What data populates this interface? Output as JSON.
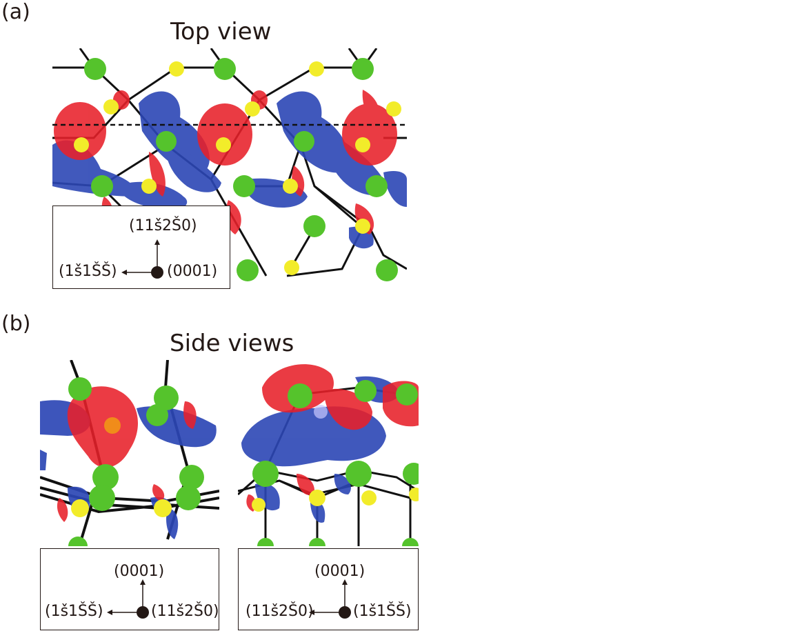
{
  "panel_a": {
    "label": "(a)",
    "title": "Top view",
    "legend": {
      "up": "(11š2Š0)",
      "left": "(1š1ŠŠ)",
      "center": "(0001)"
    }
  },
  "panel_b": {
    "label": "(b)",
    "title": "Side views",
    "left_legend": {
      "up": "(0001)",
      "left": "(1š1ŠŠ)",
      "center": "(11š2Š0)"
    },
    "right_legend": {
      "up": "(0001)",
      "left": "(11š2Š0)",
      "center": "(1š1ŠŠ)"
    }
  },
  "colors": {
    "positive_lobe": "#e8202a",
    "negative_lobe": "#2c47b5",
    "atom_green": "#55c32c",
    "atom_yellow": "#f2ec2a",
    "bond": "#111111"
  }
}
